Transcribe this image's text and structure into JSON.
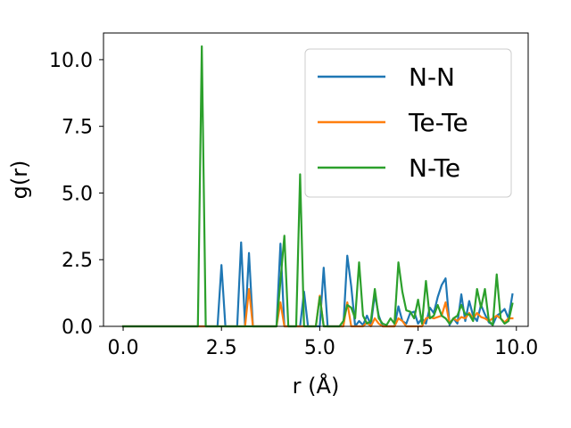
{
  "chart_data": {
    "type": "line",
    "title": "",
    "xlabel": "r (Å)",
    "ylabel": "g(r)",
    "xlim": [
      -0.5,
      10.3
    ],
    "ylim": [
      0,
      11
    ],
    "xticks": [
      0.0,
      2.5,
      5.0,
      7.5,
      10.0
    ],
    "xtick_labels": [
      "0.0",
      "2.5",
      "5.0",
      "7.5",
      "10.0"
    ],
    "yticks": [
      0.0,
      2.5,
      5.0,
      7.5,
      10.0
    ],
    "ytick_labels": [
      "0.0",
      "2.5",
      "5.0",
      "7.5",
      "10.0"
    ],
    "grid": false,
    "legend_position": "top-right",
    "series": [
      {
        "name": "N-N",
        "color": "#1f77b4",
        "points": [
          [
            0.0,
            0
          ],
          [
            2.4,
            0
          ],
          [
            2.5,
            2.3
          ],
          [
            2.6,
            0
          ],
          [
            2.9,
            0
          ],
          [
            3.0,
            3.15
          ],
          [
            3.1,
            0
          ],
          [
            3.2,
            2.75
          ],
          [
            3.3,
            0
          ],
          [
            3.9,
            0
          ],
          [
            4.0,
            3.1
          ],
          [
            4.1,
            0
          ],
          [
            4.5,
            0
          ],
          [
            4.6,
            1.3
          ],
          [
            4.7,
            0
          ],
          [
            5.0,
            0
          ],
          [
            5.1,
            2.2
          ],
          [
            5.2,
            0
          ],
          [
            5.6,
            0
          ],
          [
            5.7,
            2.65
          ],
          [
            5.8,
            1.5
          ],
          [
            5.9,
            0
          ],
          [
            6.0,
            0.2
          ],
          [
            6.1,
            0.05
          ],
          [
            6.2,
            0.4
          ],
          [
            6.3,
            0.05
          ],
          [
            6.4,
            1.2
          ],
          [
            6.5,
            0.4
          ],
          [
            6.6,
            0
          ],
          [
            6.9,
            0
          ],
          [
            7.0,
            0.75
          ],
          [
            7.1,
            0.2
          ],
          [
            7.2,
            0.1
          ],
          [
            7.3,
            0.5
          ],
          [
            7.4,
            0.55
          ],
          [
            7.5,
            0.1
          ],
          [
            7.6,
            0.3
          ],
          [
            7.7,
            0.1
          ],
          [
            7.8,
            0.7
          ],
          [
            7.9,
            0.5
          ],
          [
            8.0,
            1.1
          ],
          [
            8.1,
            1.55
          ],
          [
            8.2,
            1.8
          ],
          [
            8.3,
            0.05
          ],
          [
            8.4,
            0.3
          ],
          [
            8.5,
            0.1
          ],
          [
            8.6,
            1.2
          ],
          [
            8.7,
            0.2
          ],
          [
            8.8,
            0.95
          ],
          [
            8.9,
            0.4
          ],
          [
            9.0,
            0.2
          ],
          [
            9.1,
            0.8
          ],
          [
            9.2,
            0.45
          ],
          [
            9.3,
            0.15
          ],
          [
            9.4,
            0.05
          ],
          [
            9.5,
            0.4
          ],
          [
            9.6,
            0.5
          ],
          [
            9.7,
            0.65
          ],
          [
            9.8,
            0.3
          ],
          [
            9.9,
            1.2
          ]
        ]
      },
      {
        "name": "Te-Te",
        "color": "#ff7f0e",
        "points": [
          [
            0.0,
            0
          ],
          [
            3.1,
            0
          ],
          [
            3.2,
            1.4
          ],
          [
            3.3,
            0
          ],
          [
            3.9,
            0
          ],
          [
            4.0,
            0.9
          ],
          [
            4.1,
            0
          ],
          [
            4.9,
            0
          ],
          [
            5.0,
            1.15
          ],
          [
            5.1,
            0
          ],
          [
            5.6,
            0
          ],
          [
            5.7,
            0.9
          ],
          [
            5.8,
            0
          ],
          [
            6.1,
            0
          ],
          [
            6.2,
            0.15
          ],
          [
            6.3,
            0
          ],
          [
            6.4,
            0.3
          ],
          [
            6.5,
            0.1
          ],
          [
            6.6,
            0
          ],
          [
            6.9,
            0
          ],
          [
            7.0,
            0.3
          ],
          [
            7.1,
            0.2
          ],
          [
            7.2,
            0
          ],
          [
            7.6,
            0
          ],
          [
            7.7,
            0.3
          ],
          [
            7.8,
            0.35
          ],
          [
            7.9,
            0.3
          ],
          [
            8.0,
            0.35
          ],
          [
            8.1,
            0.4
          ],
          [
            8.2,
            0.9
          ],
          [
            8.3,
            0.1
          ],
          [
            8.4,
            0.3
          ],
          [
            8.5,
            0.2
          ],
          [
            8.6,
            0.35
          ],
          [
            8.7,
            0.3
          ],
          [
            8.8,
            0.5
          ],
          [
            8.9,
            0.3
          ],
          [
            9.0,
            0.5
          ],
          [
            9.1,
            0.35
          ],
          [
            9.2,
            0.3
          ],
          [
            9.3,
            0.2
          ],
          [
            9.4,
            0.3
          ],
          [
            9.5,
            0.4
          ],
          [
            9.6,
            0.3
          ],
          [
            9.7,
            0.15
          ],
          [
            9.8,
            0.3
          ],
          [
            9.9,
            0.3
          ]
        ]
      },
      {
        "name": "N-Te",
        "color": "#2ca02c",
        "points": [
          [
            0.0,
            0
          ],
          [
            1.9,
            0
          ],
          [
            2.0,
            10.5
          ],
          [
            2.1,
            0
          ],
          [
            3.9,
            0
          ],
          [
            4.1,
            3.4
          ],
          [
            4.2,
            0
          ],
          [
            4.4,
            0
          ],
          [
            4.5,
            5.7
          ],
          [
            4.6,
            0
          ],
          [
            4.9,
            0
          ],
          [
            5.0,
            1.1
          ],
          [
            5.1,
            0
          ],
          [
            5.5,
            0
          ],
          [
            5.6,
            0.2
          ],
          [
            5.7,
            0.8
          ],
          [
            5.8,
            0.7
          ],
          [
            5.9,
            0.3
          ],
          [
            6.0,
            2.4
          ],
          [
            6.1,
            0.4
          ],
          [
            6.2,
            0.1
          ],
          [
            6.3,
            0.2
          ],
          [
            6.4,
            1.4
          ],
          [
            6.5,
            0.3
          ],
          [
            6.6,
            0.1
          ],
          [
            6.7,
            0.05
          ],
          [
            6.8,
            0.3
          ],
          [
            6.9,
            0.1
          ],
          [
            7.0,
            2.4
          ],
          [
            7.1,
            1.3
          ],
          [
            7.2,
            0.6
          ],
          [
            7.3,
            0.55
          ],
          [
            7.4,
            0.3
          ],
          [
            7.5,
            1.0
          ],
          [
            7.6,
            0.1
          ],
          [
            7.7,
            1.7
          ],
          [
            7.8,
            0.3
          ],
          [
            7.9,
            0.4
          ],
          [
            8.0,
            0.8
          ],
          [
            8.1,
            0.4
          ],
          [
            8.2,
            0.3
          ],
          [
            8.3,
            0.1
          ],
          [
            8.4,
            0.3
          ],
          [
            8.5,
            0.4
          ],
          [
            8.6,
            0.8
          ],
          [
            8.7,
            0.45
          ],
          [
            8.8,
            0.45
          ],
          [
            8.9,
            0.2
          ],
          [
            9.0,
            1.4
          ],
          [
            9.1,
            0.7
          ],
          [
            9.2,
            1.4
          ],
          [
            9.3,
            0.2
          ],
          [
            9.4,
            0.05
          ],
          [
            9.5,
            1.95
          ],
          [
            9.6,
            0.3
          ],
          [
            9.7,
            0.1
          ],
          [
            9.8,
            0.2
          ],
          [
            9.9,
            0.85
          ]
        ]
      }
    ]
  }
}
